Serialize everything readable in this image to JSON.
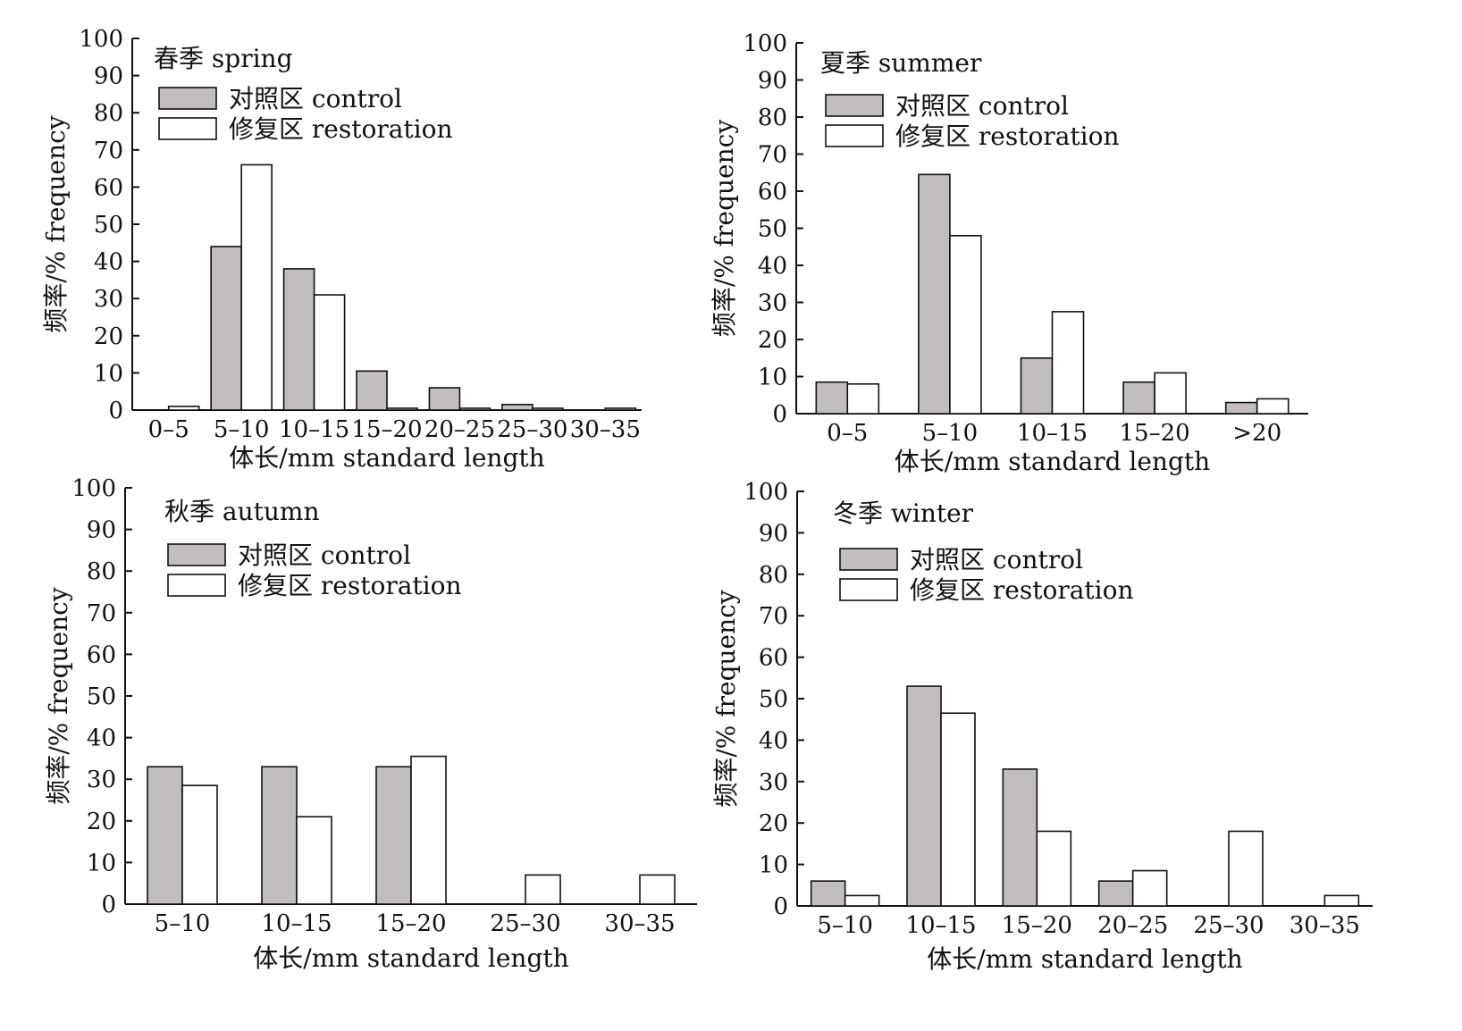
{
  "colors": {
    "control": "#c1bdc0",
    "restoration": "#ffffff",
    "stroke": "#111111"
  },
  "chart_data": [
    {
      "type": "bar",
      "title": "春季 spring",
      "xlabel": "体长/mm standard length",
      "ylabel": "频率/% frequency",
      "ylim": [
        0,
        100
      ],
      "yticks": [
        "0",
        "10",
        "20",
        "30",
        "40",
        "50",
        "60",
        "70",
        "80",
        "90",
        "100"
      ],
      "grid": false,
      "legend": "top-left",
      "categories": [
        "0–5",
        "5–10",
        "10–15",
        "15–20",
        "20–25",
        "25–30",
        "30–35"
      ],
      "series": [
        {
          "name": "对照区 control",
          "values": [
            0,
            44,
            38,
            10.5,
            6,
            1.5,
            0
          ]
        },
        {
          "name": "修复区 restoration",
          "values": [
            1,
            66,
            31,
            0.5,
            0.5,
            0.5,
            0.5
          ]
        }
      ]
    },
    {
      "type": "bar",
      "title": "夏季 summer",
      "xlabel": "体长/mm standard length",
      "ylabel": "频率/% frequency",
      "ylim": [
        0,
        100
      ],
      "yticks": [
        "0",
        "10",
        "20",
        "30",
        "40",
        "50",
        "60",
        "70",
        "80",
        "90",
        "100"
      ],
      "grid": false,
      "legend": "top-left",
      "categories": [
        "0–5",
        "5–10",
        "10–15",
        "15–20",
        ">20"
      ],
      "series": [
        {
          "name": "对照区 control",
          "values": [
            8.5,
            64.5,
            15,
            8.5,
            3
          ]
        },
        {
          "name": "修复区 restoration",
          "values": [
            8,
            48,
            27.5,
            11,
            4
          ]
        }
      ]
    },
    {
      "type": "bar",
      "title": "秋季 autumn",
      "xlabel": "体长/mm standard length",
      "ylabel": "频率/% frequency",
      "ylim": [
        0,
        100
      ],
      "yticks": [
        "0",
        "10",
        "20",
        "30",
        "40",
        "50",
        "60",
        "70",
        "80",
        "90",
        "100"
      ],
      "grid": false,
      "legend": "top-left",
      "categories": [
        "5–10",
        "10–15",
        "15–20",
        "25–30",
        "30–35"
      ],
      "series": [
        {
          "name": "对照区 control",
          "values": [
            33,
            33,
            33,
            0,
            0
          ]
        },
        {
          "name": "修复区 restoration",
          "values": [
            28.5,
            21,
            35.5,
            7,
            7
          ]
        }
      ]
    },
    {
      "type": "bar",
      "title": "冬季 winter",
      "xlabel": "体长/mm standard length",
      "ylabel": "频率/% frequency",
      "ylim": [
        0,
        100
      ],
      "yticks": [
        "0",
        "10",
        "20",
        "30",
        "40",
        "50",
        "60",
        "70",
        "80",
        "90",
        "100"
      ],
      "grid": false,
      "legend": "top-left",
      "categories": [
        "5–10",
        "10–15",
        "15–20",
        "20–25",
        "25–30",
        "30–35"
      ],
      "series": [
        {
          "name": "对照区 control",
          "values": [
            6,
            53,
            33,
            6,
            0,
            0
          ]
        },
        {
          "name": "修复区 restoration",
          "values": [
            2.5,
            46.5,
            18,
            8.5,
            18,
            2.5
          ]
        }
      ]
    }
  ]
}
